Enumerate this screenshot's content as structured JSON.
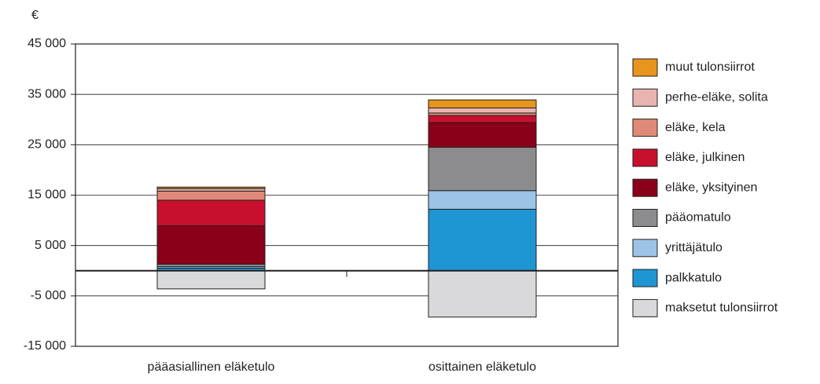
{
  "chart_data": {
    "type": "stacked-bar",
    "y_unit": "€",
    "categories": [
      "pääasiallinen eläketulo",
      "osittainen eläketulo"
    ],
    "series": [
      {
        "name": "maksetut tulonsiirrot",
        "color": "#d9d9db",
        "values": [
          -3600,
          -9200
        ]
      },
      {
        "name": "palkkatulo",
        "color": "#1e96d4",
        "values": [
          500,
          12200
        ]
      },
      {
        "name": "yrittäjätulo",
        "color": "#9dc3e6",
        "values": [
          300,
          3700
        ]
      },
      {
        "name": "pääomatulo",
        "color": "#8c8c8e",
        "values": [
          500,
          8600
        ]
      },
      {
        "name": "eläke, yksityinen",
        "color": "#8b0019",
        "values": [
          7600,
          4900
        ]
      },
      {
        "name": "eläke, julkinen",
        "color": "#c8102e",
        "values": [
          5100,
          1400
        ]
      },
      {
        "name": "eläke, kela",
        "color": "#df8a78",
        "values": [
          1800,
          500
        ]
      },
      {
        "name": "perhe-eläke, solita",
        "color": "#e8b4b0",
        "values": [
          500,
          1000
        ]
      },
      {
        "name": "muut tulonsiirrot",
        "color": "#e8951e",
        "values": [
          300,
          1600
        ]
      }
    ],
    "ylim": [
      -15000,
      45000
    ],
    "yticks": [
      {
        "value": -15000,
        "label": "-15 000"
      },
      {
        "value": -5000,
        "label": "-5 000"
      },
      {
        "value": 5000,
        "label": "5 000"
      },
      {
        "value": 15000,
        "label": "15 000"
      },
      {
        "value": 25000,
        "label": "25 000"
      },
      {
        "value": 35000,
        "label": "35 000"
      },
      {
        "value": 45000,
        "label": "45 000"
      }
    ],
    "grid": true,
    "legend": "right"
  }
}
